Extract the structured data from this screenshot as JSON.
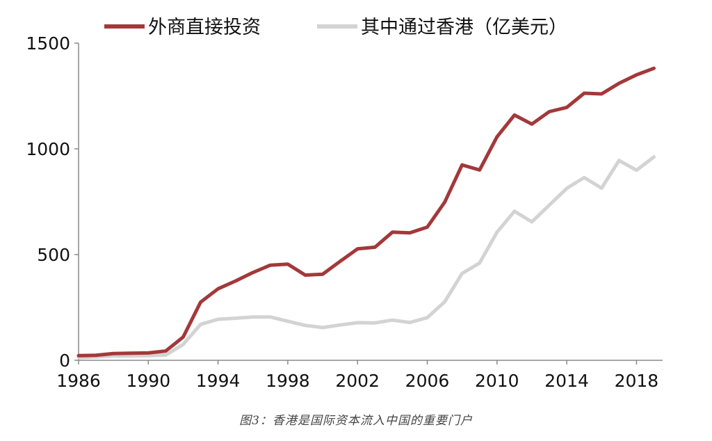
{
  "chart_data": {
    "type": "line",
    "x": [
      1986,
      1987,
      1988,
      1989,
      1990,
      1991,
      1992,
      1993,
      1994,
      1995,
      1996,
      1997,
      1998,
      1999,
      2000,
      2001,
      2002,
      2003,
      2004,
      2005,
      2006,
      2007,
      2008,
      2009,
      2010,
      2011,
      2012,
      2013,
      2014,
      2015,
      2016,
      2017,
      2018,
      2019
    ],
    "x_ticks": [
      "1986",
      "1990",
      "1994",
      "1998",
      "2002",
      "2006",
      "2010",
      "2014",
      "2018"
    ],
    "y_ticks": [
      "0",
      "500",
      "1000",
      "1500"
    ],
    "ylim": [
      0,
      1500
    ],
    "xlim": [
      1986,
      2019.5
    ],
    "series": [
      {
        "name": "外商直接投资",
        "color": "#A3383A",
        "values": [
          22,
          24,
          32,
          34,
          35,
          44,
          110,
          275,
          338,
          375,
          415,
          450,
          455,
          403,
          407,
          468,
          527,
          535,
          606,
          603,
          630,
          748,
          924,
          900,
          1057,
          1160,
          1117,
          1176,
          1196,
          1263,
          1260,
          1310,
          1350,
          1381
        ]
      },
      {
        "name": "其中通过香港（亿美元）",
        "color": "#D3D3D3",
        "values": [
          13,
          16,
          20,
          21,
          22,
          25,
          75,
          170,
          194,
          199,
          205,
          205,
          185,
          165,
          155,
          167,
          178,
          177,
          190,
          179,
          202,
          277,
          411,
          460,
          606,
          705,
          655,
          734,
          813,
          864,
          814,
          945,
          899,
          962
        ]
      }
    ],
    "grid": false,
    "legend_position": "top"
  },
  "caption": "图3：香港是国际资本流入中国的重要门户"
}
